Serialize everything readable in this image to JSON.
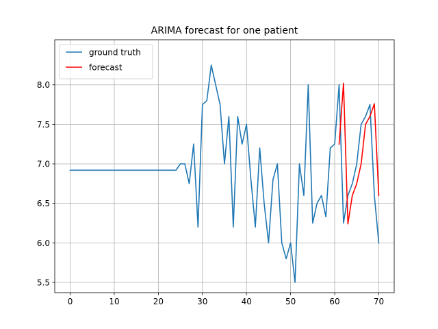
{
  "chart_data": {
    "type": "line",
    "title": "ARIMA forecast for one patient",
    "xlabel": "",
    "ylabel": "",
    "xlim": [
      -3.5,
      73.5
    ],
    "ylim": [
      5.37,
      8.57
    ],
    "xticks": [
      0,
      10,
      20,
      30,
      40,
      50,
      60,
      70
    ],
    "yticks": [
      5.5,
      6.0,
      6.5,
      7.0,
      7.5,
      8.0
    ],
    "xtick_labels": [
      "0",
      "10",
      "20",
      "30",
      "40",
      "50",
      "60",
      "70"
    ],
    "ytick_labels": [
      "5.5",
      "6.0",
      "6.5",
      "7.0",
      "7.5",
      "8.0"
    ],
    "grid": true,
    "legend_position": "upper-left",
    "series": [
      {
        "name": "ground truth",
        "color": "#1f77b4",
        "x": [
          0,
          1,
          2,
          3,
          4,
          5,
          6,
          7,
          8,
          9,
          10,
          11,
          12,
          13,
          14,
          15,
          16,
          17,
          18,
          19,
          20,
          21,
          22,
          23,
          24,
          25,
          26,
          27,
          28,
          29,
          30,
          31,
          32,
          33,
          34,
          35,
          36,
          37,
          38,
          39,
          40,
          41,
          42,
          43,
          44,
          45,
          46,
          47,
          48,
          49,
          50,
          51,
          52,
          53,
          54,
          55,
          56,
          57,
          58,
          59,
          60,
          61,
          62,
          63,
          64,
          65,
          66,
          67,
          68,
          69,
          70
        ],
        "y": [
          6.92,
          6.92,
          6.92,
          6.92,
          6.92,
          6.92,
          6.92,
          6.92,
          6.92,
          6.92,
          6.92,
          6.92,
          6.92,
          6.92,
          6.92,
          6.92,
          6.92,
          6.92,
          6.92,
          6.92,
          6.92,
          6.92,
          6.92,
          6.92,
          6.92,
          7.0,
          7.0,
          6.75,
          7.25,
          6.2,
          7.75,
          7.8,
          8.25,
          8.0,
          7.75,
          7.0,
          7.6,
          6.2,
          7.6,
          7.25,
          7.5,
          6.8,
          6.2,
          7.2,
          6.5,
          6.0,
          6.8,
          7.0,
          6.0,
          5.8,
          6.0,
          5.5,
          7.0,
          6.6,
          8.0,
          6.25,
          6.5,
          6.6,
          6.33,
          7.2,
          7.25,
          8.0,
          6.25,
          6.6,
          6.75,
          7.0,
          7.5,
          7.6,
          7.75,
          6.6,
          6.0
        ]
      },
      {
        "name": "forecast",
        "color": "#ff0000",
        "x": [
          61,
          62,
          63,
          64,
          65,
          66,
          67,
          68,
          69,
          70
        ],
        "y": [
          7.25,
          8.02,
          6.24,
          6.6,
          6.75,
          7.0,
          7.5,
          7.6,
          7.76,
          6.6
        ]
      }
    ]
  }
}
